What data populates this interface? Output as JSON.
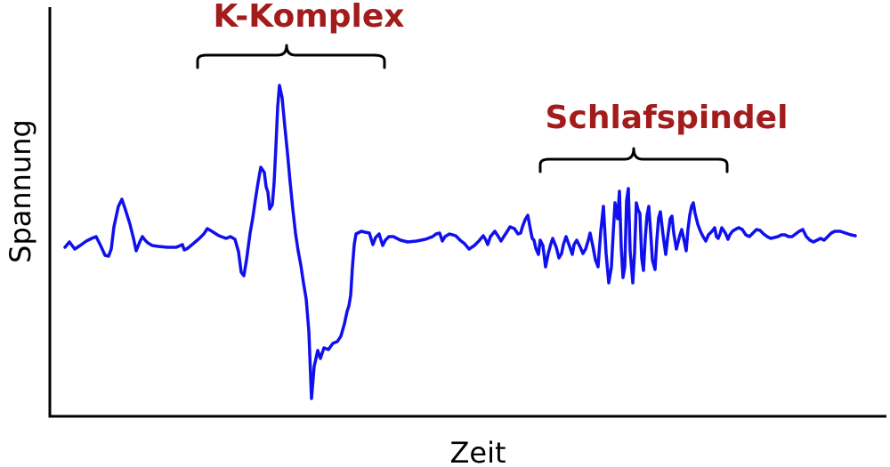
{
  "axes": {
    "x_label": "Zeit",
    "y_label": "Spannung"
  },
  "annotations": {
    "k_complex": "K-Komplex",
    "sleep_spindle": "Schlafspindel"
  },
  "colors": {
    "signal": "#1010ee",
    "annotation_text": "#a31c1c",
    "axis": "#000000"
  }
}
